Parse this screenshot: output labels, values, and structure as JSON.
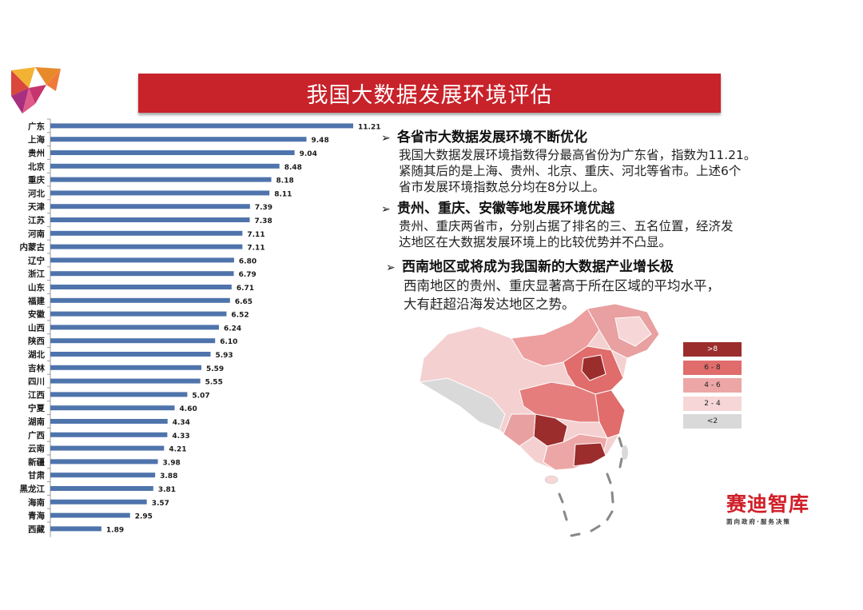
{
  "title": "我国大数据发展环境评估",
  "chart_data": {
    "type": "bar",
    "orientation": "horizontal",
    "categories": [
      "广东",
      "上海",
      "贵州",
      "北京",
      "重庆",
      "河北",
      "天津",
      "江苏",
      "河南",
      "内蒙古",
      "辽宁",
      "浙江",
      "山东",
      "福建",
      "安徽",
      "山西",
      "陕西",
      "湖北",
      "吉林",
      "四川",
      "江西",
      "宁夏",
      "湖南",
      "广西",
      "云南",
      "新疆",
      "甘肃",
      "黑龙江",
      "海南",
      "青海",
      "西藏"
    ],
    "values": [
      11.21,
      9.48,
      9.04,
      8.48,
      8.18,
      8.11,
      7.39,
      7.38,
      7.11,
      7.11,
      6.8,
      6.79,
      6.71,
      6.65,
      6.52,
      6.24,
      6.1,
      5.93,
      5.59,
      5.55,
      5.07,
      4.6,
      4.34,
      4.33,
      4.21,
      3.98,
      3.88,
      3.81,
      3.57,
      2.95,
      1.89
    ],
    "value_labels": [
      "11.21",
      "9.48",
      "9.04",
      "8.48",
      "8.18",
      "8.11",
      "7.39",
      "7.38",
      "7.11",
      "7.11",
      "6.80",
      "6.79",
      "6.71",
      "6.65",
      "6.52",
      "6.24",
      "6.10",
      "5.93",
      "5.59",
      "5.55",
      "5.07",
      "4.60",
      "4.34",
      "4.33",
      "4.21",
      "3.98",
      "3.88",
      "3.81",
      "3.57",
      "2.95",
      "1.89"
    ],
    "bar_color": "#4f74ac",
    "xlim": [
      0,
      11.21
    ],
    "grid": false,
    "title": "",
    "xlabel": "",
    "ylabel": ""
  },
  "points": [
    {
      "heading": "各省市大数据发展环境不断优化",
      "lines": [
        "我国大数据发展环境指数得分最高省份为广东省，指数为11.21。",
        "紧随其后的是上海、贵州、北京、重庆、河北等省市。上述6个",
        "省市发展环境指数总分均在8分以上。"
      ]
    },
    {
      "heading": "贵州、重庆、安徽等地发展环境优越",
      "lines": [
        "贵州、重庆两省市，分别占据了排名的三、五名位置，经济发",
        "达地区在大数据发展环境上的比较优势并不凸显。"
      ]
    },
    {
      "heading": "西南地区或将成为我国新的大数据产业增长极",
      "lines": [
        "西南地区的贵州、重庆显著高于所在区域的平均水平，",
        "大有赶超沿海发达地区之势。"
      ]
    }
  ],
  "legend": [
    {
      "label": ">8",
      "color": "#9b2d2d",
      "text_color": "#ffffff"
    },
    {
      "label": "6 - 8",
      "color": "#e06c6c",
      "text_color": "#222222"
    },
    {
      "label": "4 - 6",
      "color": "#eda6a6",
      "text_color": "#222222"
    },
    {
      "label": "2 - 4",
      "color": "#f6d6d6",
      "text_color": "#222222"
    },
    {
      "label": "<2",
      "color": "#d9d9d9",
      "text_color": "#222222"
    }
  ],
  "brand": {
    "name": "赛迪智库",
    "tagline": "面向政府·服务决策"
  },
  "icons": {
    "bullet": "arrow-bullet-icon",
    "logo": "triangle-logo-icon",
    "map": "china-map-icon"
  }
}
